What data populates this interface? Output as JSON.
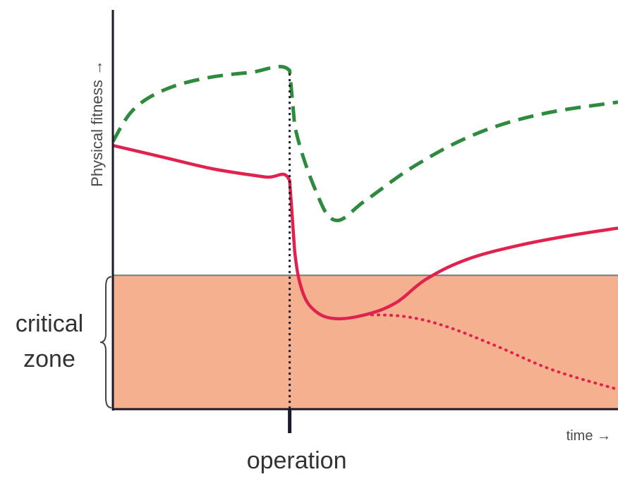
{
  "chart_data": {
    "type": "line",
    "ylabel": "Physical fitness →",
    "xlabel": "time →",
    "annotations": {
      "event_label": "operation",
      "zone_label_line1": "critical",
      "zone_label_line2": "zone"
    },
    "xlim": [
      0,
      100
    ],
    "ylim": [
      0,
      100
    ],
    "event_x": 35,
    "critical_zone": [
      0,
      34
    ],
    "grid": false,
    "legend": "none",
    "series": [
      {
        "style": "dashed",
        "color": "#2e8b3e",
        "points": [
          [
            0,
            68
          ],
          [
            4,
            76
          ],
          [
            10,
            81
          ],
          [
            18,
            84
          ],
          [
            27,
            85.5
          ],
          [
            35,
            86
          ],
          [
            36,
            72
          ],
          [
            40,
            56
          ],
          [
            44,
            48
          ],
          [
            50,
            53
          ],
          [
            60,
            62
          ],
          [
            72,
            70
          ],
          [
            85,
            75
          ],
          [
            100,
            78
          ]
        ]
      },
      {
        "style": "solid",
        "color": "#e0234e",
        "points": [
          [
            0,
            67
          ],
          [
            10,
            64
          ],
          [
            20,
            61
          ],
          [
            30,
            59
          ],
          [
            35,
            58
          ],
          [
            36,
            40
          ],
          [
            37.5,
            30
          ],
          [
            40,
            25
          ],
          [
            44,
            23
          ],
          [
            50,
            24
          ],
          [
            56,
            27
          ],
          [
            62,
            33
          ],
          [
            70,
            38
          ],
          [
            80,
            41.5
          ],
          [
            90,
            44
          ],
          [
            100,
            46
          ]
        ]
      },
      {
        "style": "dotted",
        "color": "#e0234e",
        "points": [
          [
            50,
            24
          ],
          [
            58,
            23.5
          ],
          [
            66,
            21
          ],
          [
            76,
            16
          ],
          [
            87,
            10
          ],
          [
            100,
            5
          ]
        ]
      }
    ],
    "colors": {
      "zone_fill": "#f4b08f",
      "zone_line": "#7a7a7a",
      "axis": "#1a1a2e",
      "event_line": "#1a1a2e"
    }
  }
}
